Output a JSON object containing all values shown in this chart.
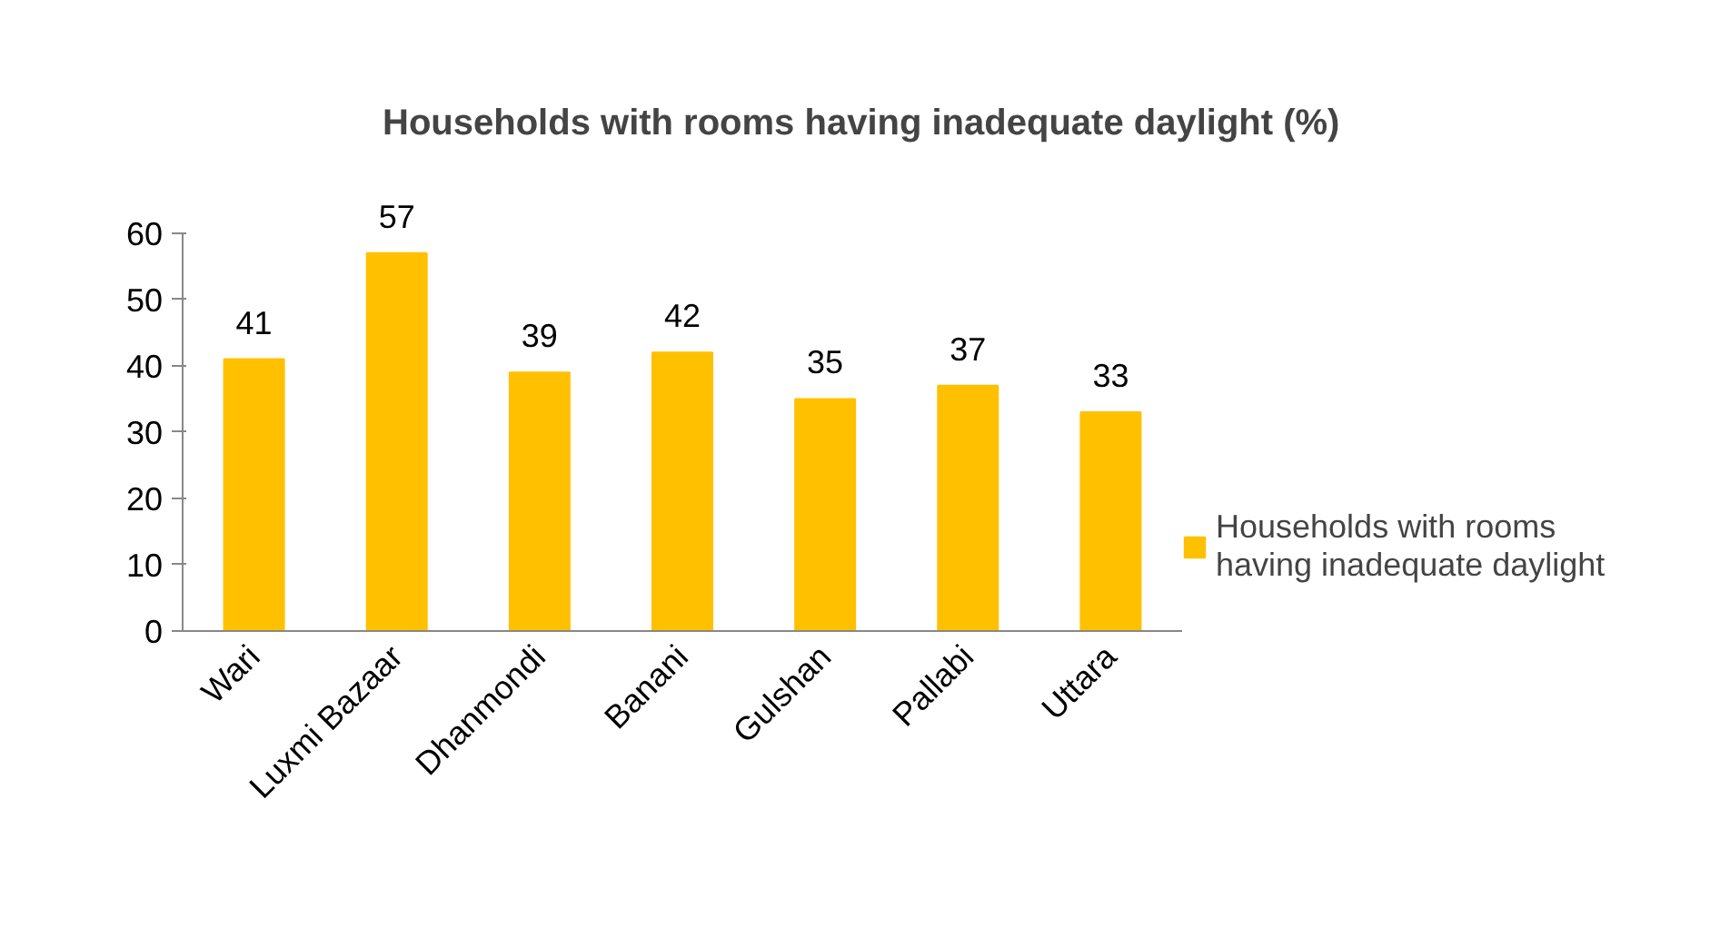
{
  "chart_data": {
    "type": "bar",
    "title": "Households with rooms  having inadequate daylight (%)",
    "categories": [
      "Wari",
      "Luxmi Bazaar",
      "Dhanmondi",
      "Banani",
      "Gulshan",
      "Pallabi",
      "Uttara"
    ],
    "series": [
      {
        "name": "Households with rooms having inadequate daylight",
        "color": "#ffc000",
        "values": [
          41,
          57,
          39,
          42,
          35,
          37,
          33
        ]
      }
    ],
    "ylim": [
      0,
      60
    ],
    "yticks": [
      0,
      10,
      20,
      30,
      40,
      50,
      60
    ],
    "grid": false,
    "legend": "right",
    "data_labels": true
  }
}
